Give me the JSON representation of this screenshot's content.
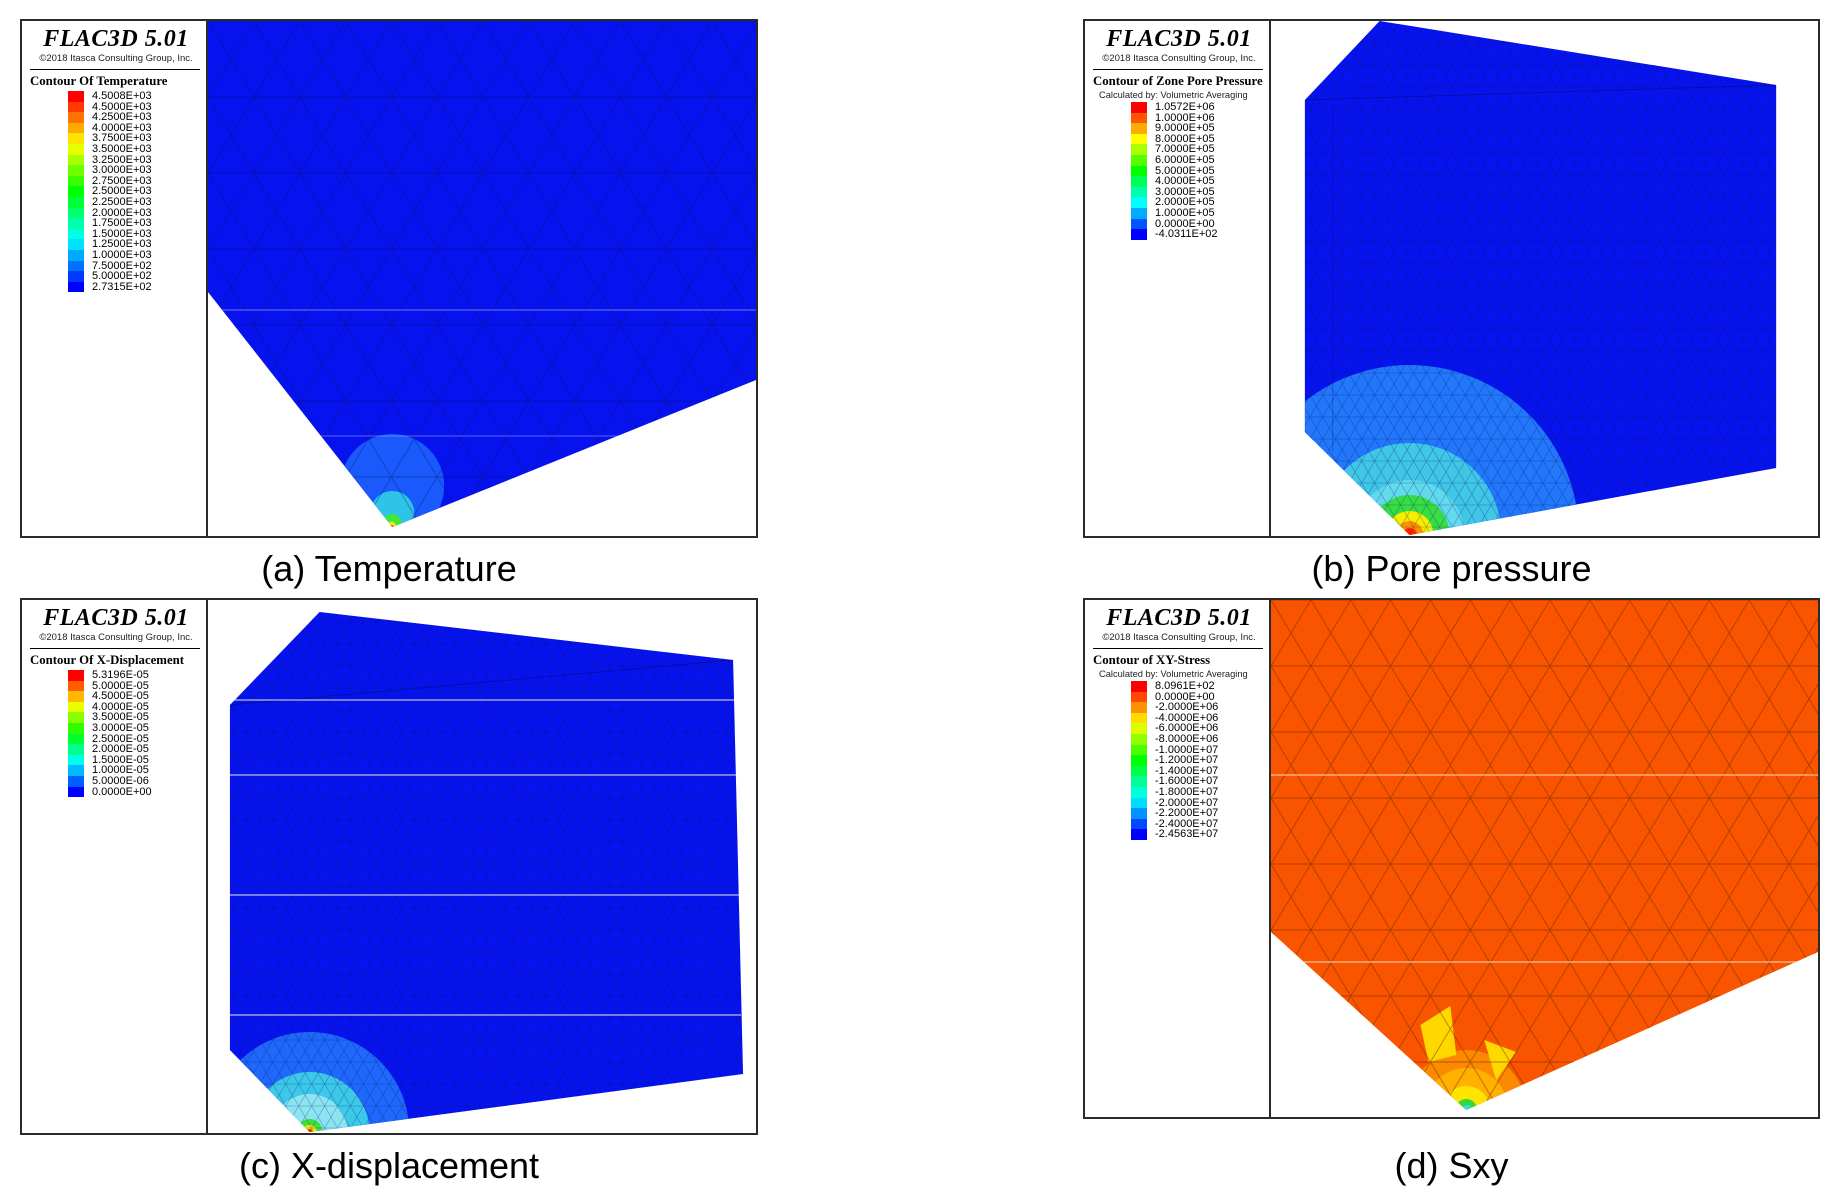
{
  "figure": {
    "colors": {
      "mesh_blue": "#0713ee",
      "mesh_orange": "#f95400"
    },
    "panels": [
      {
        "id": "a",
        "app_title": "FLAC3D 5.01",
        "copyright": "©2018 Itasca Consulting Group, Inc.",
        "legend_title": "Contour Of Temperature",
        "legend_subtitle": "",
        "values": [
          "4.5008E+03",
          "4.5000E+03",
          "4.2500E+03",
          "4.0000E+03",
          "3.7500E+03",
          "3.5000E+03",
          "3.2500E+03",
          "3.0000E+03",
          "2.7500E+03",
          "2.5000E+03",
          "2.2500E+03",
          "2.0000E+03",
          "1.7500E+03",
          "1.5000E+03",
          "1.2500E+03",
          "1.0000E+03",
          "7.5000E+02",
          "5.0000E+02",
          "2.7315E+02"
        ],
        "swatch_colors": [
          "#FF0000",
          "#FF3900",
          "#FF7100",
          "#FFAA00",
          "#FFE300",
          "#E3FF00",
          "#AAFF00",
          "#71FF00",
          "#39FF00",
          "#00FF00",
          "#00FF39",
          "#00FF71",
          "#00FFAA",
          "#00FFE3",
          "#00E3FF",
          "#00AAFF",
          "#0071FF",
          "#0039FF",
          "#0000FF"
        ],
        "caption": "(a) Temperature"
      },
      {
        "id": "b",
        "app_title": "FLAC3D 5.01",
        "copyright": "©2018 Itasca Consulting Group, Inc.",
        "legend_title": "Contour of Zone Pore Pressure",
        "legend_subtitle": "Calculated by: Volumetric Averaging",
        "values": [
          "1.0572E+06",
          "1.0000E+06",
          "9.0000E+05",
          "8.0000E+05",
          "7.0000E+05",
          "6.0000E+05",
          "5.0000E+05",
          "4.0000E+05",
          "3.0000E+05",
          "2.0000E+05",
          "1.0000E+05",
          "0.0000E+00",
          "-4.0311E+02"
        ],
        "swatch_colors": [
          "#FF0000",
          "#FF5500",
          "#FFAA00",
          "#FFFF00",
          "#AAFF00",
          "#55FF00",
          "#00FF00",
          "#00FF55",
          "#00FFAA",
          "#00FFFF",
          "#00AAFF",
          "#0055FF",
          "#0000FF"
        ],
        "caption": "(b) Pore pressure"
      },
      {
        "id": "c",
        "app_title": "FLAC3D 5.01",
        "copyright": "©2018 Itasca Consulting Group, Inc.",
        "legend_title": "Contour Of X-Displacement",
        "legend_subtitle": "",
        "values": [
          "5.3196E-05",
          "5.0000E-05",
          "4.5000E-05",
          "4.0000E-05",
          "3.5000E-05",
          "3.0000E-05",
          "2.5000E-05",
          "2.0000E-05",
          "1.5000E-05",
          "1.0000E-05",
          "5.0000E-06",
          "0.0000E+00"
        ],
        "swatch_colors": [
          "#FF0000",
          "#FF5D00",
          "#FFB900",
          "#E8FF00",
          "#8BFF00",
          "#2EFF00",
          "#00FF2E",
          "#00FF8B",
          "#00FFE8",
          "#00B9FF",
          "#005DFF",
          "#0000FF"
        ],
        "caption": "(c) X-displacement"
      },
      {
        "id": "d",
        "app_title": "FLAC3D 5.01",
        "copyright": "©2018 Itasca Consulting Group, Inc.",
        "legend_title": "Contour of XY-Stress",
        "legend_subtitle": "Calculated by: Volumetric Averaging",
        "values": [
          "8.0961E+02",
          "0.0000E+00",
          "-2.0000E+06",
          "-4.0000E+06",
          "-6.0000E+06",
          "-8.0000E+06",
          "-1.0000E+07",
          "-1.2000E+07",
          "-1.4000E+07",
          "-1.6000E+07",
          "-1.8000E+07",
          "-2.0000E+07",
          "-2.2000E+07",
          "-2.4000E+07",
          "-2.4563E+07"
        ],
        "swatch_colors": [
          "#FF0000",
          "#FF4900",
          "#FF9200",
          "#FFDB00",
          "#DBFF00",
          "#92FF00",
          "#49FF00",
          "#00FF00",
          "#00FF49",
          "#00FF92",
          "#00FFDB",
          "#00DBFF",
          "#0092FF",
          "#0049FF",
          "#0000FF"
        ],
        "caption": "(d) Sxy"
      }
    ]
  },
  "chart_data": [
    {
      "type": "heatmap",
      "title": "Contour Of Temperature",
      "caption": "(a) Temperature",
      "legend_values": [
        4500.8,
        4500,
        4250,
        4000,
        3750,
        3500,
        3250,
        3000,
        2750,
        2500,
        2250,
        2000,
        1750,
        1500,
        1250,
        1000,
        750,
        500,
        273.15
      ],
      "max": 4500.8,
      "min": 273.15,
      "legend_position": "top-left",
      "colormap": "rainbow red-to-blue"
    },
    {
      "type": "heatmap",
      "title": "Contour of Zone Pore Pressure",
      "caption": "(b) Pore pressure",
      "subtitle": "Calculated by: Volumetric Averaging",
      "legend_values": [
        1057200,
        1000000,
        900000,
        800000,
        700000,
        600000,
        500000,
        400000,
        300000,
        200000,
        100000,
        0,
        -403.11
      ],
      "max": 1057200,
      "min": -403.11,
      "legend_position": "top-left",
      "colormap": "rainbow red-to-blue"
    },
    {
      "type": "heatmap",
      "title": "Contour Of X-Displacement",
      "caption": "(c) X-displacement",
      "legend_values": [
        5.3196e-05,
        5e-05,
        4.5e-05,
        4e-05,
        3.5e-05,
        3e-05,
        2.5e-05,
        2e-05,
        1.5e-05,
        1e-05,
        5e-06,
        0
      ],
      "max": 5.3196e-05,
      "min": 0,
      "legend_position": "top-left",
      "colormap": "rainbow red-to-blue"
    },
    {
      "type": "heatmap",
      "title": "Contour of XY-Stress",
      "caption": "(d) Sxy",
      "subtitle": "Calculated by: Volumetric Averaging",
      "legend_values": [
        809.61,
        0,
        -2000000,
        -4000000,
        -6000000,
        -8000000,
        -10000000,
        -12000000,
        -14000000,
        -16000000,
        -18000000,
        -20000000,
        -22000000,
        -24000000,
        -24563000
      ],
      "max": 809.61,
      "min": -24563000,
      "legend_position": "top-left",
      "colormap": "rainbow red-to-blue"
    }
  ]
}
